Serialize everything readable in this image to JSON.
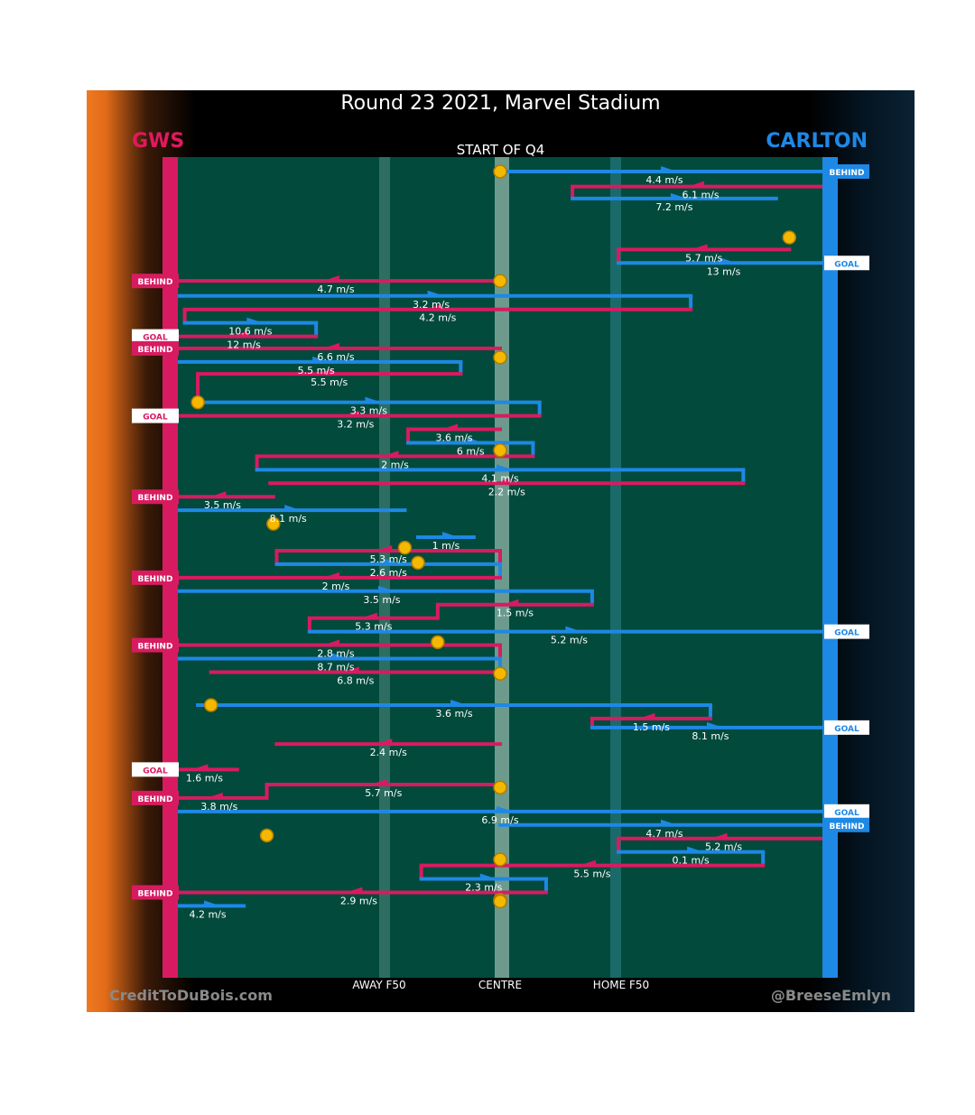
{
  "header": {
    "title": "Round 23 2021, Marvel Stadium",
    "home_team": "GWS",
    "away_team": "CARLTON",
    "subtitle": "START OF Q4"
  },
  "footer": {
    "credit_left": "CreditToDuBois.com",
    "credit_right": "@BreeseEmlyn"
  },
  "colors": {
    "home": "#d81b60",
    "away": "#1e88e5",
    "field": "#024a3c",
    "stoppage": "#f5b800"
  },
  "chart_data": {
    "type": "line",
    "title": "Round 23 2021, Marvel Stadium",
    "subtitle": "START OF Q4",
    "description": "Ball movement chains; x = field position from GWS goal (0) to CARLTON goal (100); y = sequence step",
    "xlim": [
      0,
      100
    ],
    "zone_labels": [
      {
        "label": "AWAY F50",
        "x": 31
      },
      {
        "label": "CENTRE",
        "x": 50
      },
      {
        "label": "HOME F50",
        "x": 68
      }
    ],
    "series": [
      {
        "name": "GWS",
        "color": "#d81b60"
      },
      {
        "name": "CARLTON",
        "color": "#1e88e5"
      }
    ],
    "stoppages": [
      {
        "x": 50,
        "y": 0
      },
      {
        "x": 94,
        "y": 4.4
      },
      {
        "x": 50,
        "y": 7.3
      },
      {
        "x": 50,
        "y": 12.4
      },
      {
        "x": 4,
        "y": 15.4
      },
      {
        "x": 50,
        "y": 18.6
      },
      {
        "x": 15.5,
        "y": 23.5
      },
      {
        "x": 35.5,
        "y": 25.1
      },
      {
        "x": 37.5,
        "y": 26.1
      },
      {
        "x": 40.5,
        "y": 31.4
      },
      {
        "x": 50,
        "y": 33.5
      },
      {
        "x": 6,
        "y": 35.6
      },
      {
        "x": 50,
        "y": 41.1
      },
      {
        "x": 14.5,
        "y": 44.3
      },
      {
        "x": 50,
        "y": 45.9
      },
      {
        "x": 50,
        "y": 48.6
      },
      {
        "x": 50,
        "y": 48.7
      }
    ],
    "chains": [
      {
        "team": "away",
        "dir": "r",
        "speed": "4.4 m/s",
        "x": [
          50,
          100
        ],
        "y": 0,
        "end": "BEHIND"
      },
      {
        "team": "home",
        "dir": "l",
        "speed": "6.1 m/s",
        "x": [
          61,
          100
        ],
        "y": 1
      },
      {
        "team": "away",
        "dir": "r",
        "speed": "7.2 m/s",
        "x": [
          61,
          92
        ],
        "y": 1.8
      },
      {
        "team": "home",
        "dir": "l",
        "speed": "5.7 m/s",
        "x": [
          68,
          94
        ],
        "y": 5.2
      },
      {
        "team": "away",
        "dir": "r",
        "speed": "13 m/s",
        "x": [
          68,
          100
        ],
        "y": 6.1,
        "end": "GOAL"
      },
      {
        "team": "home",
        "dir": "l",
        "speed": "4.7 m/s",
        "x": [
          0,
          50
        ],
        "y": 7.3,
        "end": "BEHIND"
      },
      {
        "team": "away",
        "dir": "r",
        "speed": "3.2 m/s",
        "x": [
          0,
          79
        ],
        "y": 8.3
      },
      {
        "team": "home",
        "dir": "l",
        "speed": "4.2 m/s",
        "x": [
          2,
          79
        ],
        "y": 9.2
      },
      {
        "team": "away",
        "dir": "r",
        "speed": "10.6 m/s",
        "x": [
          2,
          22
        ],
        "y": 10.1
      },
      {
        "team": "home",
        "dir": "l",
        "speed": "12 m/s",
        "x": [
          0,
          22
        ],
        "y": 11.0,
        "end": "GOAL"
      },
      {
        "team": "home",
        "dir": "l",
        "speed": "6.6 m/s",
        "x": [
          0,
          50
        ],
        "y": 11.8,
        "end": "BEHIND"
      },
      {
        "team": "away",
        "dir": "r",
        "speed": "5.5 m/s",
        "x": [
          0,
          44
        ],
        "y": 12.7
      },
      {
        "team": "home",
        "dir": "l",
        "speed": "5.5 m/s",
        "x": [
          4,
          44
        ],
        "y": 13.5
      },
      {
        "team": "away",
        "dir": "r",
        "speed": "3.3 m/s",
        "x": [
          4,
          56
        ],
        "y": 15.4
      },
      {
        "team": "home",
        "dir": "l",
        "speed": "3.2 m/s",
        "x": [
          0,
          56
        ],
        "y": 16.3,
        "end": "GOAL"
      },
      {
        "team": "home",
        "dir": "l",
        "speed": "3.6 m/s",
        "x": [
          36,
          50
        ],
        "y": 17.2
      },
      {
        "team": "away",
        "dir": "r",
        "speed": "6 m/s",
        "x": [
          36,
          55
        ],
        "y": 18.1
      },
      {
        "team": "home",
        "dir": "l",
        "speed": "2 m/s",
        "x": [
          13,
          55
        ],
        "y": 19.0
      },
      {
        "team": "away",
        "dir": "r",
        "speed": "4.1 m/s",
        "x": [
          13,
          87
        ],
        "y": 19.9
      },
      {
        "team": "home",
        "dir": "l",
        "speed": "2.2 m/s",
        "x": [
          15,
          87
        ],
        "y": 20.8
      },
      {
        "team": "home",
        "dir": "l",
        "speed": "3.5 m/s",
        "x": [
          0,
          15.5
        ],
        "y": 21.7,
        "end": "BEHIND"
      },
      {
        "team": "away",
        "dir": "r",
        "speed": "8.1 m/s",
        "x": [
          0,
          35.5
        ],
        "y": 22.6
      },
      {
        "team": "away",
        "dir": "r",
        "speed": "1 m/s",
        "x": [
          37.5,
          46
        ],
        "y": 24.4
      },
      {
        "team": "home",
        "dir": "l",
        "speed": "5.3 m/s",
        "x": [
          16,
          50
        ],
        "y": 25.3
      },
      {
        "team": "away",
        "dir": "r",
        "speed": "2.6 m/s",
        "x": [
          16,
          50
        ],
        "y": 26.2
      },
      {
        "team": "home",
        "dir": "l",
        "speed": "2 m/s",
        "x": [
          0,
          50
        ],
        "y": 27.1,
        "end": "BEHIND"
      },
      {
        "team": "away",
        "dir": "r",
        "speed": "3.5 m/s",
        "x": [
          0,
          64
        ],
        "y": 28.0
      },
      {
        "team": "home",
        "dir": "l",
        "speed": "1.5 m/s",
        "x": [
          40.5,
          64
        ],
        "y": 28.9
      },
      {
        "team": "home",
        "dir": "l",
        "speed": "5.3 m/s",
        "x": [
          21,
          40.5
        ],
        "y": 29.8
      },
      {
        "team": "away",
        "dir": "r",
        "speed": "5.2 m/s",
        "x": [
          21,
          100
        ],
        "y": 30.7,
        "end": "GOAL"
      },
      {
        "team": "home",
        "dir": "l",
        "speed": "2.8 m/s",
        "x": [
          0,
          50
        ],
        "y": 31.6,
        "end": "BEHIND"
      },
      {
        "team": "away",
        "dir": "r",
        "speed": "8.7 m/s",
        "x": [
          0,
          50
        ],
        "y": 32.5
      },
      {
        "team": "home",
        "dir": "l",
        "speed": "6.8 m/s",
        "x": [
          6,
          50
        ],
        "y": 33.4
      },
      {
        "team": "away",
        "dir": "r",
        "speed": "3.6 m/s",
        "x": [
          4,
          82
        ],
        "y": 35.6
      },
      {
        "team": "home",
        "dir": "l",
        "speed": "1.5 m/s",
        "x": [
          64,
          82
        ],
        "y": 36.5
      },
      {
        "team": "away",
        "dir": "r",
        "speed": "8.1 m/s",
        "x": [
          64,
          100
        ],
        "y": 37.1,
        "end": "GOAL"
      },
      {
        "team": "home",
        "dir": "l",
        "speed": "2.4 m/s",
        "x": [
          16,
          50
        ],
        "y": 38.2
      },
      {
        "team": "home",
        "dir": "l",
        "speed": "1.6 m/s",
        "x": [
          0,
          10
        ],
        "y": 39.9,
        "end": "GOAL"
      },
      {
        "team": "home",
        "dir": "l",
        "speed": "5.7 m/s",
        "x": [
          14.5,
          50
        ],
        "y": 40.9
      },
      {
        "team": "home",
        "dir": "l",
        "speed": "3.8 m/s",
        "x": [
          0,
          14.5
        ],
        "y": 41.8,
        "end": "BEHIND"
      },
      {
        "team": "away",
        "dir": "r",
        "speed": "6.9 m/s",
        "x": [
          0,
          100
        ],
        "y": 42.7,
        "end": "GOAL"
      },
      {
        "team": "away",
        "dir": "r",
        "speed": "4.7 m/s",
        "x": [
          50,
          100
        ],
        "y": 43.6,
        "end": "BEHIND"
      },
      {
        "team": "home",
        "dir": "l",
        "speed": "5.2 m/s",
        "x": [
          68,
          100
        ],
        "y": 44.5
      },
      {
        "team": "away",
        "dir": "r",
        "speed": "0.1 m/s",
        "x": [
          68,
          90
        ],
        "y": 45.4
      },
      {
        "team": "home",
        "dir": "l",
        "speed": "5.5 m/s",
        "x": [
          38,
          90
        ],
        "y": 46.3
      },
      {
        "team": "away",
        "dir": "r",
        "speed": "2.3 m/s",
        "x": [
          38,
          57
        ],
        "y": 47.2
      },
      {
        "team": "home",
        "dir": "l",
        "speed": "2.9 m/s",
        "x": [
          0,
          57
        ],
        "y": 48.1,
        "end": "BEHIND"
      },
      {
        "team": "away",
        "dir": "r",
        "speed": "4.2 m/s",
        "x": [
          0,
          11
        ],
        "y": 49.0
      }
    ]
  }
}
